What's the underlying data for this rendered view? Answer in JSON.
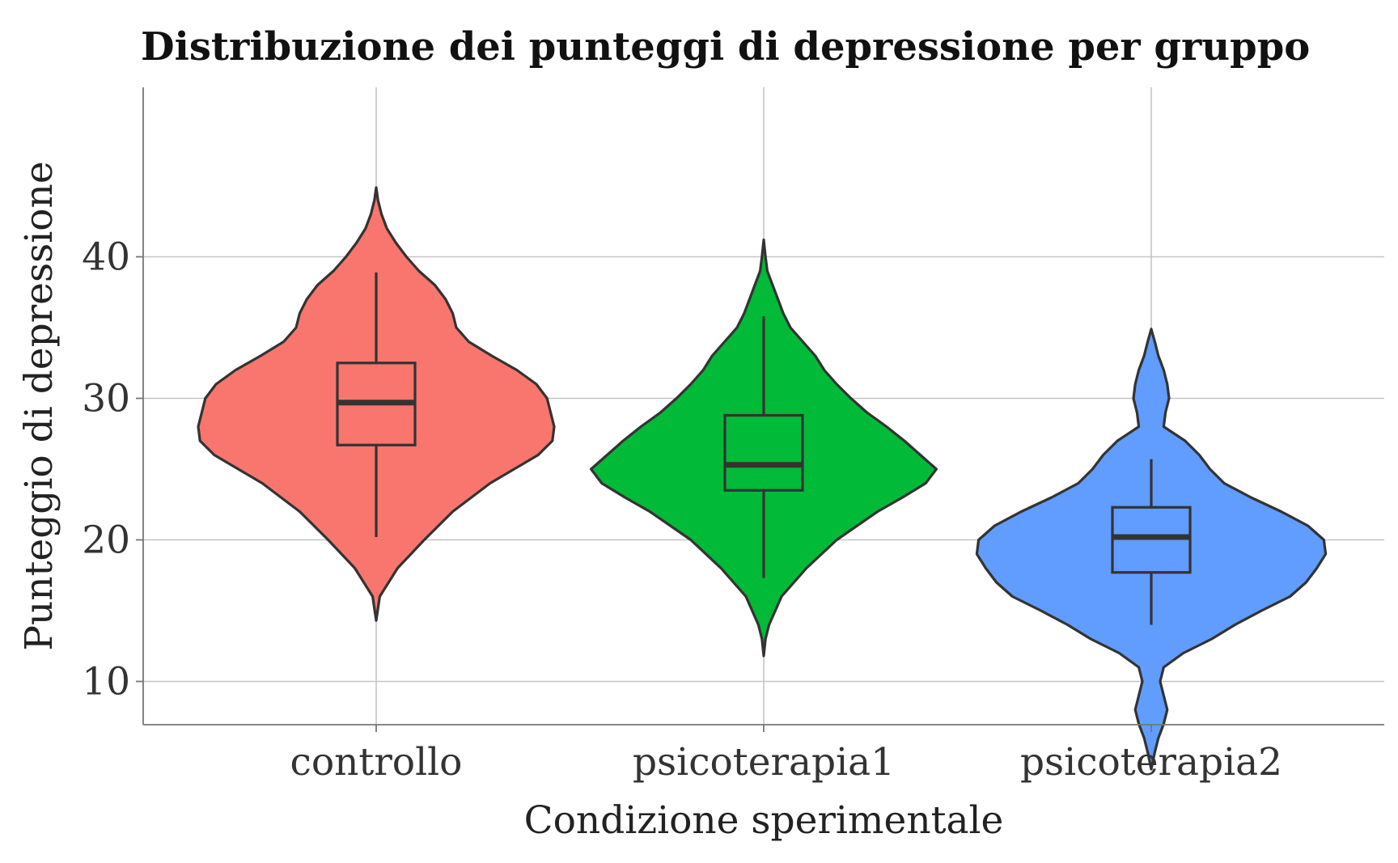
{
  "chart_data": {
    "type": "violin",
    "title": "Distribuzione dei punteggi di depressione per gruppo",
    "xlabel": "Condizione sperimentale",
    "ylabel": "Punteggio di depressione",
    "ylim": [
      1.5,
      46.5
    ],
    "yticks": [
      10,
      20,
      30,
      40
    ],
    "grid": true,
    "legend": "none",
    "categories": [
      "controllo",
      "psicoterapia1",
      "psicoterapia2"
    ],
    "groups": [
      {
        "name": "controllo",
        "color": "#F8766D",
        "box": {
          "whisker_low": 20.2,
          "q1": 26.7,
          "median": 29.7,
          "q3": 32.5,
          "whisker_high": 38.9
        },
        "density": [
          [
            14.3,
            0
          ],
          [
            16,
            0.02
          ],
          [
            18,
            0.12
          ],
          [
            20,
            0.27
          ],
          [
            22,
            0.43
          ],
          [
            24,
            0.64
          ],
          [
            26,
            0.91
          ],
          [
            27,
            0.99
          ],
          [
            28,
            1.0
          ],
          [
            29,
            0.98
          ],
          [
            30,
            0.96
          ],
          [
            31,
            0.9
          ],
          [
            32,
            0.79
          ],
          [
            33,
            0.65
          ],
          [
            34,
            0.52
          ],
          [
            35,
            0.45
          ],
          [
            36,
            0.43
          ],
          [
            37,
            0.39
          ],
          [
            38,
            0.33
          ],
          [
            39,
            0.24
          ],
          [
            40,
            0.17
          ],
          [
            41,
            0.11
          ],
          [
            42,
            0.06
          ],
          [
            43,
            0.03
          ],
          [
            44,
            0.01
          ],
          [
            44.9,
            0
          ]
        ]
      },
      {
        "name": "psicoterapia1",
        "color": "#00BA38",
        "box": {
          "whisker_low": 17.3,
          "q1": 23.5,
          "median": 25.3,
          "q3": 28.8,
          "whisker_high": 35.8
        },
        "density": [
          [
            11.8,
            0
          ],
          [
            13,
            0.01
          ],
          [
            14,
            0.03
          ],
          [
            16,
            0.1
          ],
          [
            18,
            0.24
          ],
          [
            20,
            0.41
          ],
          [
            22,
            0.64
          ],
          [
            23,
            0.78
          ],
          [
            24,
            0.91
          ],
          [
            25,
            0.97
          ],
          [
            26,
            0.88
          ],
          [
            27,
            0.79
          ],
          [
            28,
            0.69
          ],
          [
            29,
            0.58
          ],
          [
            30,
            0.49
          ],
          [
            31,
            0.41
          ],
          [
            32,
            0.34
          ],
          [
            33,
            0.29
          ],
          [
            34,
            0.22
          ],
          [
            35,
            0.15
          ],
          [
            36,
            0.11
          ],
          [
            37,
            0.08
          ],
          [
            38,
            0.05
          ],
          [
            39,
            0.02
          ],
          [
            40,
            0.01
          ],
          [
            41.2,
            0
          ]
        ]
      },
      {
        "name": "psicoterapia2",
        "color": "#619CFF",
        "box": {
          "whisker_low": 14,
          "q1": 17.7,
          "median": 20.2,
          "q3": 22.3,
          "whisker_high": 25.7
        },
        "density": [
          [
            3.8,
            0
          ],
          [
            5,
            0.02
          ],
          [
            6,
            0.04
          ],
          [
            7,
            0.07
          ],
          [
            8,
            0.09
          ],
          [
            9,
            0.07
          ],
          [
            10,
            0.05
          ],
          [
            11,
            0.07
          ],
          [
            12,
            0.18
          ],
          [
            13,
            0.34
          ],
          [
            14,
            0.47
          ],
          [
            15,
            0.62
          ],
          [
            16,
            0.78
          ],
          [
            17,
            0.87
          ],
          [
            18,
            0.93
          ],
          [
            19,
            0.98
          ],
          [
            20,
            0.97
          ],
          [
            21,
            0.88
          ],
          [
            22,
            0.73
          ],
          [
            23,
            0.56
          ],
          [
            24,
            0.41
          ],
          [
            25,
            0.33
          ],
          [
            26,
            0.27
          ],
          [
            27,
            0.19
          ],
          [
            28,
            0.07
          ],
          [
            29,
            0.08
          ],
          [
            30,
            0.1
          ],
          [
            31,
            0.09
          ],
          [
            32,
            0.07
          ],
          [
            33,
            0.04
          ],
          [
            34,
            0.02
          ],
          [
            34.9,
            0
          ]
        ]
      }
    ]
  }
}
